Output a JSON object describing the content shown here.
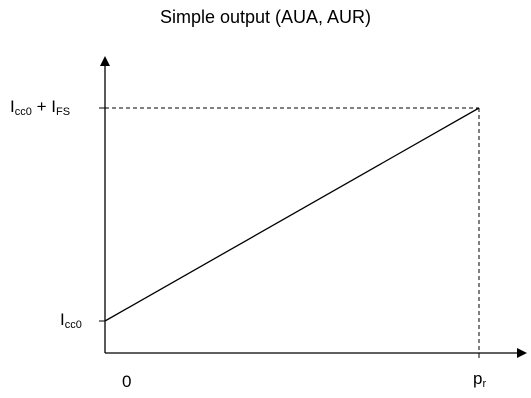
{
  "diagram": {
    "title": "Simple output (AUA, AUR)",
    "y_labels": {
      "top": {
        "main": "I",
        "sub1": "cc0",
        "plus": " + I",
        "sub2": "FS"
      },
      "bottom": {
        "main": "I",
        "sub": "cc0"
      }
    },
    "x_labels": {
      "origin": "0",
      "end": {
        "main": "p",
        "sub": "r"
      }
    },
    "colors": {
      "line": "#000000",
      "background": "#ffffff"
    }
  }
}
